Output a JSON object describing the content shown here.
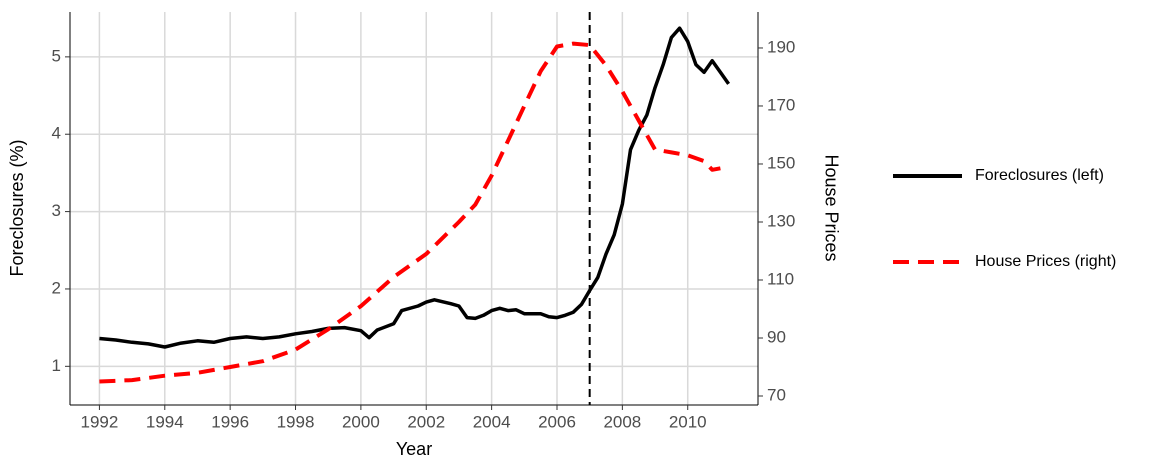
{
  "chart_data": {
    "type": "line",
    "xlabel": "Year",
    "ylabel": "Foreclosures (%)",
    "y2label": "House Prices",
    "xlim": [
      1991.1,
      2012.15
    ],
    "xticks": [
      1992,
      1994,
      1996,
      1998,
      2000,
      2002,
      2004,
      2006,
      2008,
      2010
    ],
    "ylim": [
      0.5,
      5.58
    ],
    "yticks": [
      1,
      2,
      3,
      4,
      5
    ],
    "y2lim": [
      66.9,
      202.4
    ],
    "y2ticks": [
      70,
      90,
      110,
      130,
      150,
      170,
      190
    ],
    "grid": true,
    "vline": 2007,
    "legend": "right",
    "series": [
      {
        "name": "Foreclosures (left)",
        "color": "#000000",
        "dash": false,
        "x": [
          1992,
          1992.5,
          1993,
          1993.5,
          1994,
          1994.5,
          1995,
          1995.5,
          1996,
          1996.5,
          1997,
          1997.5,
          1998,
          1998.5,
          1999,
          1999.5,
          2000,
          2000.25,
          2000.5,
          2001,
          2001.25,
          2001.75,
          2002,
          2002.25,
          2002.75,
          2003,
          2003.25,
          2003.5,
          2003.75,
          2004,
          2004.25,
          2004.5,
          2004.75,
          2005,
          2005.5,
          2005.75,
          2006,
          2006.25,
          2006.5,
          2006.75,
          2007,
          2007.25,
          2007.5,
          2007.75,
          2008,
          2008.25,
          2008.5,
          2008.75,
          2009,
          2009.25,
          2009.5,
          2009.75,
          2010,
          2010.25,
          2010.5,
          2010.75,
          2011,
          2011.25
        ],
        "values": [
          1.36,
          1.34,
          1.31,
          1.29,
          1.25,
          1.3,
          1.33,
          1.31,
          1.36,
          1.38,
          1.36,
          1.38,
          1.42,
          1.45,
          1.49,
          1.5,
          1.46,
          1.37,
          1.47,
          1.55,
          1.72,
          1.78,
          1.83,
          1.86,
          1.81,
          1.78,
          1.63,
          1.62,
          1.66,
          1.72,
          1.75,
          1.72,
          1.73,
          1.68,
          1.68,
          1.64,
          1.63,
          1.66,
          1.7,
          1.8,
          1.98,
          2.15,
          2.45,
          2.7,
          3.1,
          3.8,
          4.05,
          4.25,
          4.6,
          4.9,
          5.25,
          5.37,
          5.2,
          4.9,
          4.8,
          4.95,
          4.8,
          4.65
        ]
      },
      {
        "name": "House Prices (right)",
        "color": "#ff0000",
        "dash": true,
        "axis": "y2",
        "x": [
          1992,
          1993,
          1994,
          1995,
          1996,
          1997,
          1998,
          1999,
          2000,
          2001,
          2002,
          2003,
          2003.5,
          2004,
          2004.5,
          2005,
          2005.5,
          2006,
          2006.5,
          2007,
          2007.5,
          2008,
          2008.5,
          2009,
          2009.5,
          2010,
          2010.5,
          2010.75,
          2011
        ],
        "values": [
          75,
          75.5,
          77,
          78,
          80,
          82,
          86,
          93,
          101,
          111,
          119,
          130,
          136,
          146,
          158,
          170,
          182,
          190.5,
          191.5,
          191,
          184,
          175,
          165,
          155,
          154,
          153,
          151,
          148,
          148.5
        ]
      }
    ]
  }
}
